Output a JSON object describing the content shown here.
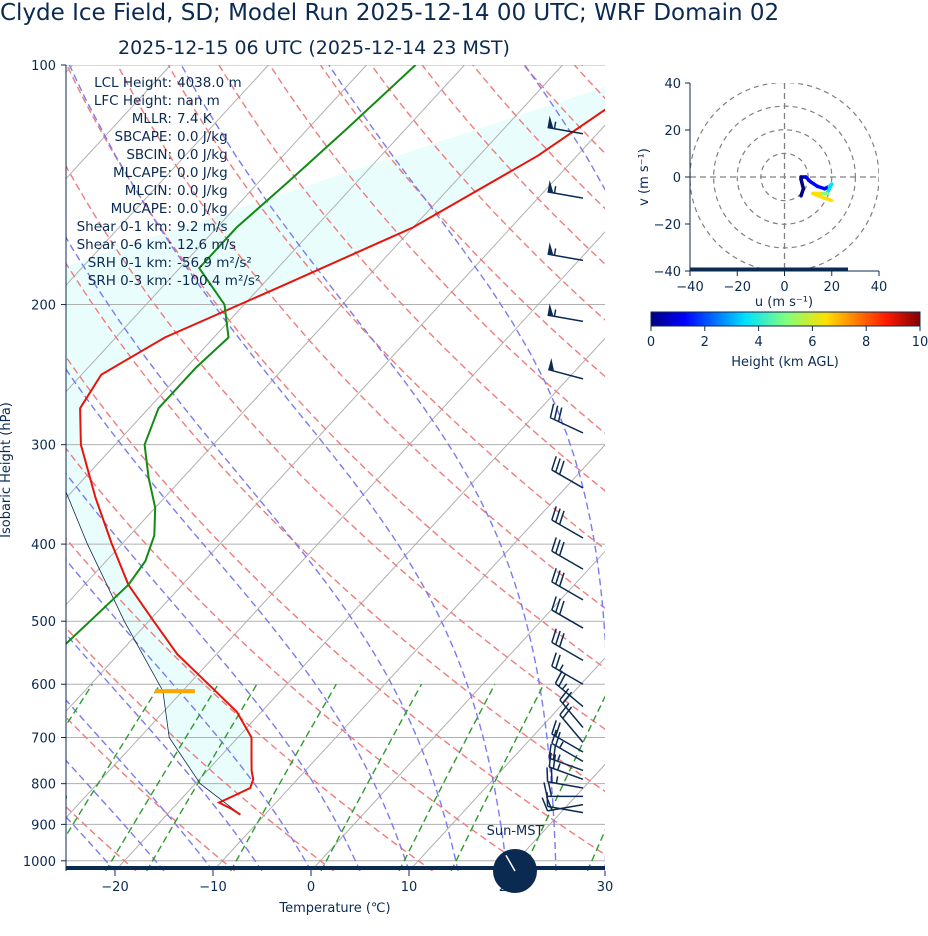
{
  "title": "Clyde Ice Field, SD; Model Run 2025-12-14 00 UTC; WRF Domain 02",
  "subtitle": "2025-12-15 06 UTC  (2025-12-14 23 MST)",
  "colors": {
    "temperature": "#e8140c",
    "dewpoint": "#138a13",
    "dry_adiabat": "#f07b7b",
    "moist_adiabat": "#7b7bf0",
    "mixing_ratio": "#2e9b2e",
    "cape_fill": "#eafdfd",
    "barb": "#0b2a52",
    "isobar": "#b0b0b0",
    "lcl_marker": "#ffa500"
  },
  "chart_data": [
    {
      "type": "line",
      "name": "skew-t",
      "xlabel": "Temperature (℃)",
      "ylabel": "Isobaric Height (hPa)",
      "xlim": [
        -25,
        30
      ],
      "ylim": [
        1030,
        100
      ],
      "y_scale": "log",
      "x_ticks": [
        "−20",
        "−10",
        "0",
        "10",
        "20",
        "30"
      ],
      "x_tick_values": [
        -20,
        -10,
        0,
        10,
        20,
        30
      ],
      "y_ticks": [
        "100",
        "200",
        "300",
        "400",
        "500",
        "600",
        "700",
        "800",
        "900",
        "1000"
      ],
      "y_tick_values": [
        100,
        200,
        300,
        400,
        500,
        600,
        700,
        800,
        900,
        1000
      ],
      "temperature": {
        "pressure": [
          875,
          860,
          845,
          830,
          810,
          790,
          770,
          740,
          700,
          650,
          600,
          550,
          500,
          450,
          400,
          350,
          300,
          270,
          245,
          220,
          190,
          160,
          130,
          100
        ],
        "values": [
          -12.5,
          -14.0,
          -15.8,
          -15.0,
          -14.0,
          -14.5,
          -15.5,
          -16.8,
          -18.6,
          -22.5,
          -28.0,
          -34.0,
          -39.5,
          -45.5,
          -51.0,
          -57.0,
          -63.5,
          -67.0,
          -68.0,
          -65.0,
          -58.0,
          -50.0,
          -44.0,
          -39.0
        ]
      },
      "dewpoint": {
        "pressure": [
          875,
          860,
          845,
          830,
          815,
          800,
          780,
          760,
          730,
          700,
          650,
          600,
          550,
          500,
          450,
          420,
          390,
          360,
          330,
          300,
          270,
          240,
          220,
          200,
          180,
          160,
          140,
          120,
          100
        ],
        "values": [
          -33.5,
          -32.5,
          -31.5,
          -32.0,
          -33.5,
          -35.5,
          -38.0,
          -40.0,
          -41.5,
          -43.0,
          -45.0,
          -46.5,
          -46.5,
          -46.0,
          -45.5,
          -46.0,
          -47.5,
          -50.0,
          -53.5,
          -57.0,
          -59.0,
          -59.0,
          -58.5,
          -62.0,
          -68.0,
          -68.0,
          -67.0,
          -66.0,
          -65.0
        ]
      },
      "parcel": {
        "pressure": [
          875,
          800,
          700,
          612,
          500,
          400,
          300,
          200
        ],
        "values": [
          -12.5,
          -19.5,
          -27.0,
          -32.0,
          -42.5,
          -53.5,
          -67.0,
          -90.0
        ]
      },
      "lcl_pressure_hpa": 612,
      "surface_pressure_hpa": 875,
      "wind_barbs": {
        "pressure": [
          100,
          122,
          147,
          176,
          210,
          248,
          290,
          340,
          393,
          430,
          470,
          510,
          560,
          600,
          640,
          680,
          710,
          730,
          750,
          770,
          790,
          810,
          830,
          850,
          870
        ],
        "speed_kt": [
          60,
          55,
          55,
          55,
          55,
          50,
          30,
          30,
          30,
          30,
          30,
          30,
          30,
          25,
          25,
          20,
          20,
          20,
          25,
          25,
          25,
          25,
          20,
          20,
          10
        ],
        "direction_deg": [
          300,
          280,
          280,
          280,
          280,
          285,
          295,
          300,
          300,
          300,
          300,
          300,
          300,
          300,
          310,
          320,
          320,
          300,
          300,
          290,
          290,
          280,
          270,
          260,
          280
        ]
      },
      "stats": [
        {
          "label": "LCL Height:",
          "value": "4038.0 m"
        },
        {
          "label": "LFC Height:",
          "value": "nan m"
        },
        {
          "label": "MLLR:",
          "value": "7.4 K"
        },
        {
          "label": "SBCAPE:",
          "value": "0.0 J/kg"
        },
        {
          "label": "SBCIN:",
          "value": "0.0 J/kg"
        },
        {
          "label": "MLCAPE:",
          "value": "0.0 J/kg"
        },
        {
          "label": "MLCIN:",
          "value": "0.0 J/kg"
        },
        {
          "label": "MUCAPE:",
          "value": "0.0 J/kg"
        },
        {
          "label": "Shear 0-1 km:",
          "value": "9.2 m/s"
        },
        {
          "label": "Shear 0-6 km:",
          "value": "12.6 m/s"
        },
        {
          "label": "SRH 0-1 km:",
          "value": "-56.9 m²/s²"
        },
        {
          "label": "SRH 0-3 km:",
          "value": "-100.4 m²/s²"
        }
      ],
      "sun_clock": {
        "label": "Sun-MST",
        "hour": 23
      }
    },
    {
      "type": "line",
      "name": "hodograph",
      "xlabel": "u (m s⁻¹)",
      "ylabel": "v (m s⁻¹)",
      "xlim": [
        -40,
        40
      ],
      "ylim": [
        -40,
        40
      ],
      "x_ticks": [
        "−40",
        "−20",
        "0",
        "20",
        "40"
      ],
      "x_tick_values": [
        -40,
        -20,
        0,
        20,
        40
      ],
      "y_ticks": [
        "40",
        "20",
        "0",
        "−20",
        "−40"
      ],
      "y_tick_values": [
        40,
        20,
        0,
        -20,
        -40
      ],
      "ring_radii": [
        10,
        20,
        30,
        40
      ],
      "u": [
        7,
        8,
        7,
        7,
        9,
        11,
        14,
        17,
        19,
        20,
        18,
        15,
        12,
        17,
        20
      ],
      "v": [
        -8,
        -5,
        -1,
        0,
        0,
        -2,
        -4,
        -5,
        -4,
        -3,
        -7,
        -7,
        -7,
        -9,
        -10
      ],
      "height_km": [
        0,
        0.3,
        0.6,
        0.9,
        1.3,
        2.0,
        2.8,
        3.5,
        4.2,
        5.0,
        5.8,
        6.6,
        7.4,
        8.5,
        10
      ]
    }
  ],
  "colorbar": {
    "label": "Height (km AGL)",
    "ticks": [
      "0",
      "2",
      "4",
      "6",
      "8",
      "10"
    ],
    "range": [
      0,
      10
    ]
  }
}
